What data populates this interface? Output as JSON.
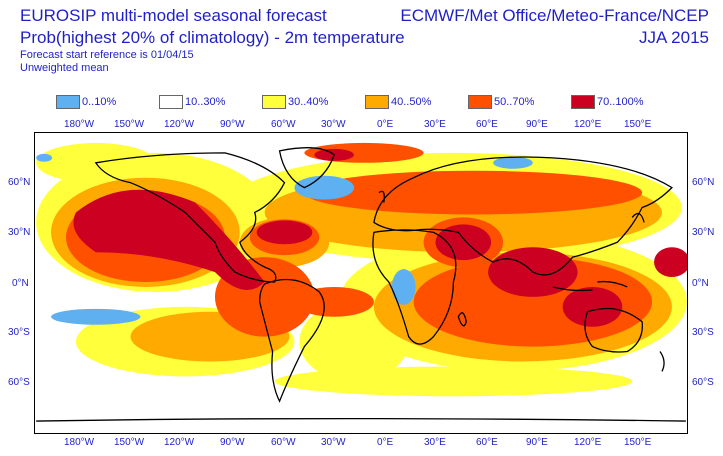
{
  "header": {
    "title": "EUROSIP multi-model seasonal forecast",
    "subtitle": "Prob(highest 20% of climatology) - 2m temperature",
    "reference": "Forecast start reference is 01/04/15",
    "mean": "Unweighted mean",
    "centres": "ECMWF/Met Office/Meteo-France/NCEP",
    "season": "JJA 2015"
  },
  "legend": [
    {
      "label": "0..10%",
      "color": "#5fb0f0"
    },
    {
      "label": "10..30%",
      "color": "#ffffff"
    },
    {
      "label": "30..40%",
      "color": "#ffff3c"
    },
    {
      "label": "40..50%",
      "color": "#ffaa00"
    },
    {
      "label": "50..70%",
      "color": "#ff5000"
    },
    {
      "label": "70..100%",
      "color": "#cc0020"
    }
  ],
  "axes": {
    "lon_labels": [
      "180°W",
      "150°W",
      "120°W",
      "90°W",
      "60°W",
      "30°W",
      "0°E",
      "30°E",
      "60°E",
      "90°E",
      "120°E",
      "150°E"
    ],
    "lat_labels": [
      "60°N",
      "30°N",
      "0°N",
      "30°S",
      "60°S"
    ]
  },
  "map": {
    "regions": [
      {
        "name": "n-pacific-hot",
        "level": 5
      },
      {
        "name": "ne-pacific-hot",
        "level": 5
      },
      {
        "name": "e-pacific-hot",
        "level": 5
      },
      {
        "name": "n-atlantic-hot",
        "level": 5
      },
      {
        "name": "arabia-hot",
        "level": 5
      },
      {
        "name": "indian-ocean-hot",
        "level": 5
      },
      {
        "name": "w-pacific-hot",
        "level": 5
      },
      {
        "name": "north-atlantic-cold",
        "level": 0
      },
      {
        "name": "south-pacific-cold",
        "level": 0
      }
    ]
  }
}
